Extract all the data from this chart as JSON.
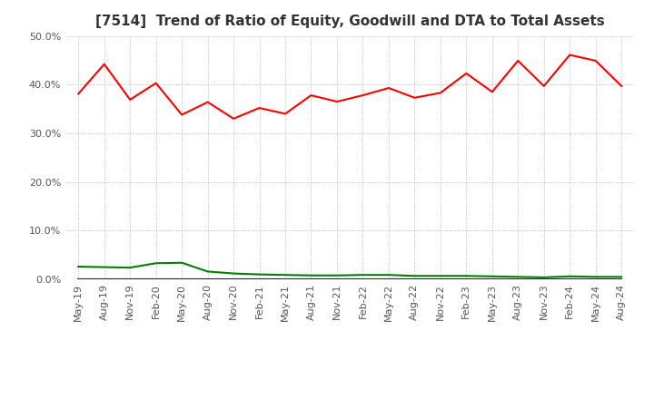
{
  "title": "[7514]  Trend of Ratio of Equity, Goodwill and DTA to Total Assets",
  "x_labels": [
    "May-19",
    "Aug-19",
    "Nov-19",
    "Feb-20",
    "May-20",
    "Aug-20",
    "Nov-20",
    "Feb-21",
    "May-21",
    "Aug-21",
    "Nov-21",
    "Feb-22",
    "May-22",
    "Aug-22",
    "Nov-22",
    "Feb-23",
    "May-23",
    "Aug-23",
    "Nov-23",
    "Feb-24",
    "May-24",
    "Aug-24"
  ],
  "equity": [
    0.381,
    0.442,
    0.369,
    0.403,
    0.338,
    0.364,
    0.33,
    0.352,
    0.34,
    0.378,
    0.365,
    0.378,
    0.393,
    0.373,
    0.383,
    0.423,
    0.385,
    0.449,
    0.397,
    0.461,
    0.449,
    0.397
  ],
  "goodwill": [
    0.0,
    0.0,
    0.0,
    0.0,
    0.0,
    0.0,
    0.0,
    0.0,
    0.0,
    0.0,
    0.0,
    0.0,
    0.0,
    0.0,
    0.0,
    0.0,
    0.0,
    0.0,
    0.0,
    0.0,
    0.0,
    0.0
  ],
  "dta": [
    0.026,
    0.025,
    0.024,
    0.033,
    0.034,
    0.016,
    0.012,
    0.01,
    0.009,
    0.008,
    0.008,
    0.009,
    0.009,
    0.007,
    0.007,
    0.007,
    0.006,
    0.005,
    0.004,
    0.006,
    0.005,
    0.005
  ],
  "equity_color": "#ff0000",
  "goodwill_color": "#0000ff",
  "dta_color": "#008000",
  "ylim": [
    0.0,
    0.5
  ],
  "yticks": [
    0.0,
    0.1,
    0.2,
    0.3,
    0.4,
    0.5
  ],
  "background_color": "#ffffff",
  "plot_bg_color": "#ffffff",
  "title_fontsize": 11,
  "tick_fontsize": 8,
  "legend_fontsize": 9
}
